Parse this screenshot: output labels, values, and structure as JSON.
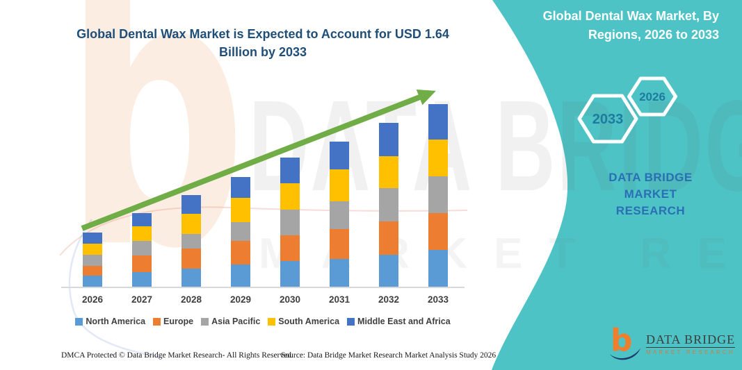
{
  "title_lines": [
    "Global Dental Wax Market is Expected to Account for USD 1.64",
    "Billion by 2033"
  ],
  "side_panel": {
    "title_lines": [
      "Global Dental Wax Market, By",
      "Regions, 2026 to 2033"
    ],
    "hexagon_large_label": "2033",
    "hexagon_small_label": "2026",
    "brand_text_lines": [
      "DATA BRIDGE MARKET",
      "RESEARCH"
    ]
  },
  "watermark": {
    "b_glyph": "b",
    "line1": "DATA BRIDGE",
    "line2": "MARKET RESEARCH"
  },
  "chart_data": {
    "type": "bar",
    "stacked": true,
    "unit": "USD Billion",
    "title": "Global Dental Wax Market is Expected to Account for USD 1.64 Billion by 2033",
    "xlabel": "",
    "ylabel": "",
    "y_axis_visible": false,
    "grid": false,
    "legend_position": "bottom",
    "trend_arrow": true,
    "categories": [
      "2026",
      "2027",
      "2028",
      "2029",
      "2030",
      "2031",
      "2032",
      "2033"
    ],
    "series": [
      {
        "name": "North America",
        "color": "#5B9BD5",
        "values": [
          0.1,
          0.13,
          0.16,
          0.2,
          0.23,
          0.25,
          0.29,
          0.33
        ]
      },
      {
        "name": "Europe",
        "color": "#ED7D31",
        "values": [
          0.09,
          0.15,
          0.18,
          0.21,
          0.23,
          0.27,
          0.3,
          0.33
        ]
      },
      {
        "name": "Asia Pacific",
        "color": "#A5A5A5",
        "values": [
          0.1,
          0.13,
          0.13,
          0.17,
          0.23,
          0.25,
          0.3,
          0.33
        ]
      },
      {
        "name": "South America",
        "color": "#FFC000",
        "values": [
          0.1,
          0.13,
          0.18,
          0.22,
          0.24,
          0.29,
          0.29,
          0.33
        ]
      },
      {
        "name": "Middle East and Africa",
        "color": "#4472C4",
        "values": [
          0.1,
          0.12,
          0.17,
          0.19,
          0.23,
          0.25,
          0.3,
          0.32
        ]
      }
    ],
    "totals": [
      0.49,
      0.66,
      0.82,
      0.99,
      1.16,
      1.31,
      1.48,
      1.64
    ],
    "final_value_usd_billion": 1.64,
    "final_year": "2033"
  },
  "logo": {
    "glyph": "b",
    "name": "DATA BRIDGE",
    "sub": "MARKET RESEARCH"
  },
  "footer": {
    "left": "DMCA Protected © Data Bridge Market Research-  All Rights Reserved.",
    "right": "Source: Data Bridge Market Research  Market Analysis Study 2026"
  },
  "colors": {
    "teal_band": "#4EC3C5",
    "title_blue": "#1F4E79",
    "arrow_green": "#70AD47",
    "hex_number_blue": "#1E7BA0",
    "brand_text_blue": "#2A6FB5",
    "axis_line": "#D9D9D9",
    "label_gray": "#3F3F3F"
  }
}
